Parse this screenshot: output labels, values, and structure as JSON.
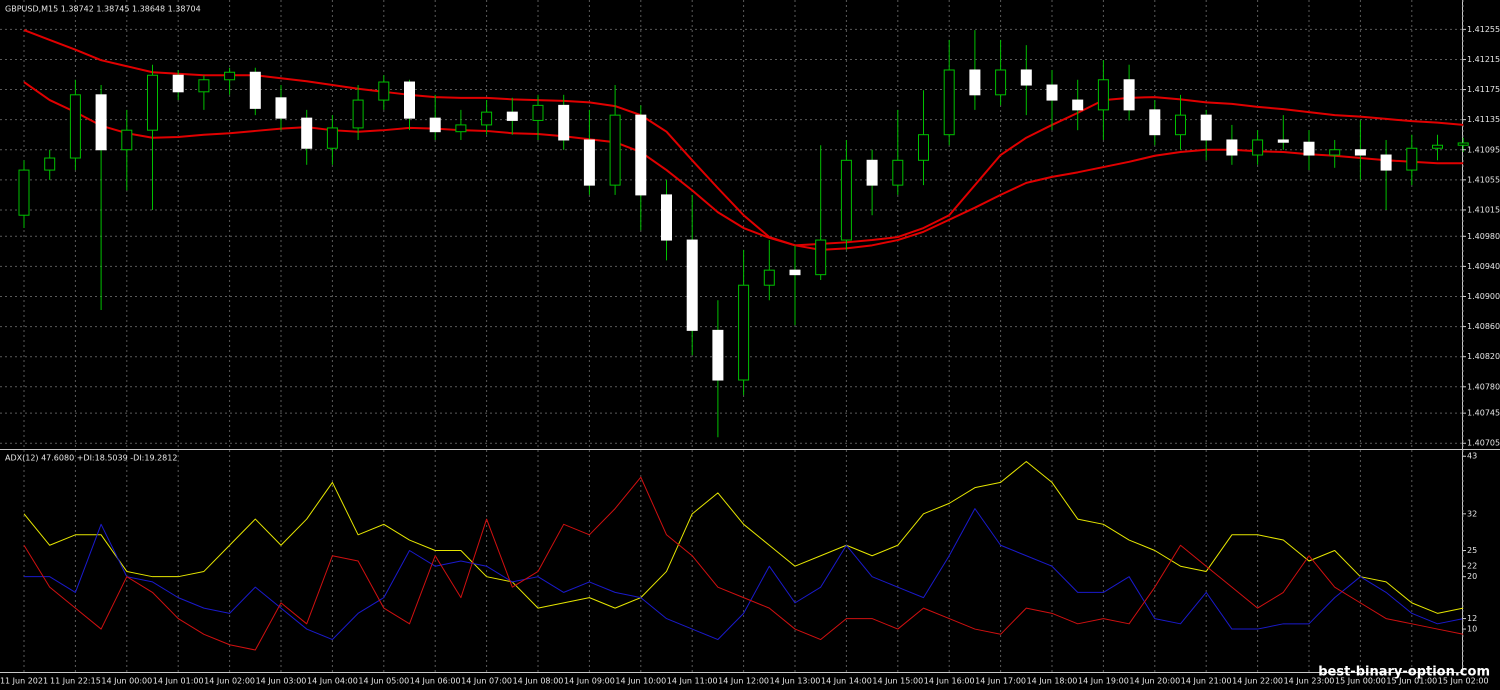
{
  "chart_data": [
    {
      "type": "candlestick",
      "title": "GBPUSD,M15  1.38742 1.38745 1.38648 1.38704",
      "categories": [
        "11 Jun 2021",
        null,
        "11 Jun 22:15",
        null,
        "14 Jun 00:00",
        null,
        "14 Jun 01:00",
        null,
        "14 Jun 02:00",
        null,
        "14 Jun 03:00",
        null,
        "14 Jun 04:00",
        null,
        "14 Jun 05:00",
        null,
        "14 Jun 06:00",
        null,
        "14 Jun 07:00",
        null,
        "14 Jun 08:00",
        null,
        "14 Jun 09:00",
        null,
        "14 Jun 10:00",
        null,
        "14 Jun 11:00",
        null,
        "14 Jun 12:00",
        null,
        "14 Jun 13:00",
        null,
        "14 Jun 14:00",
        null,
        "14 Jun 15:00",
        null,
        "14 Jun 16:00",
        null,
        "14 Jun 17:00",
        null,
        "14 Jun 18:00",
        null,
        "14 Jun 19:00",
        null,
        "14 Jun 20:00",
        null,
        "14 Jun 21:00",
        null,
        "14 Jun 22:00",
        null,
        "14 Jun 23:00",
        null,
        "15 Jun 00:00",
        null,
        "15 Jun 01:00",
        null,
        "15 Jun 02:00"
      ],
      "open": [
        1.41008,
        1.41068,
        1.41084,
        1.41168,
        1.41095,
        1.41121,
        1.41194,
        1.41172,
        1.41188,
        1.41198,
        1.41164,
        1.41137,
        1.41097,
        1.41124,
        1.41161,
        1.41185,
        1.41137,
        1.41119,
        1.41128,
        1.41145,
        1.41134,
        1.41154,
        1.41108,
        1.41048,
        1.41141,
        1.41035,
        1.40975,
        1.40855,
        1.40789,
        1.40915,
        1.40935,
        1.40929,
        1.40975,
        1.41081,
        1.41048,
        1.41081,
        1.41115,
        1.41201,
        1.41168,
        1.41201,
        1.41181,
        1.41161,
        1.41148,
        1.41188,
        1.41148,
        1.41115,
        1.41141,
        1.41108,
        1.41088,
        1.41108,
        1.41105,
        1.41088,
        1.41095,
        1.41088,
        1.41068,
        1.41097,
        1.41101
      ],
      "high": [
        1.41081,
        1.41095,
        1.41188,
        1.41181,
        1.41148,
        1.41208,
        1.41201,
        1.41194,
        1.41204,
        1.41204,
        1.41181,
        1.41148,
        1.41141,
        1.41181,
        1.41194,
        1.41188,
        1.41168,
        1.41148,
        1.41161,
        1.41164,
        1.41168,
        1.41168,
        1.41148,
        1.41181,
        1.41154,
        1.41055,
        1.41035,
        1.40895,
        1.40962,
        1.40975,
        1.40968,
        1.41101,
        1.41108,
        1.41095,
        1.41148,
        1.41174,
        1.41241,
        1.41254,
        1.41241,
        1.41234,
        1.41201,
        1.41188,
        1.41214,
        1.41208,
        1.41161,
        1.41168,
        1.41148,
        1.41128,
        1.41121,
        1.41141,
        1.41121,
        1.41108,
        1.41134,
        1.41108,
        1.41115,
        1.41115,
        1.41111
      ],
      "low": [
        1.40991,
        1.41055,
        1.41068,
        1.40882,
        1.41041,
        1.41015,
        1.41161,
        1.41148,
        1.41168,
        1.41141,
        1.41121,
        1.41075,
        1.41075,
        1.41108,
        1.41148,
        1.41121,
        1.41108,
        1.41108,
        1.41115,
        1.41115,
        1.41108,
        1.41095,
        1.41035,
        1.41035,
        1.40988,
        1.40948,
        1.40822,
        1.40713,
        1.40769,
        1.40895,
        1.40862,
        1.40922,
        1.40962,
        1.41008,
        1.41035,
        1.41048,
        1.41101,
        1.41148,
        1.41154,
        1.41141,
        1.41121,
        1.41121,
        1.41108,
        1.41134,
        1.41101,
        1.41095,
        1.41081,
        1.41075,
        1.41075,
        1.41095,
        1.41068,
        1.41071,
        1.41055,
        1.41015,
        1.41048,
        1.41081,
        1.41092
      ],
      "close": [
        1.41068,
        1.41084,
        1.41168,
        1.41095,
        1.41121,
        1.41194,
        1.41172,
        1.41188,
        1.41198,
        1.4115,
        1.41137,
        1.41097,
        1.41124,
        1.41161,
        1.41185,
        1.41137,
        1.41119,
        1.41128,
        1.41145,
        1.41134,
        1.41154,
        1.41108,
        1.41048,
        1.41141,
        1.41035,
        1.40975,
        1.40855,
        1.40789,
        1.40915,
        1.40935,
        1.40929,
        1.40975,
        1.41081,
        1.41048,
        1.41081,
        1.41115,
        1.41201,
        1.41168,
        1.41201,
        1.41181,
        1.41161,
        1.41148,
        1.41188,
        1.41148,
        1.41115,
        1.41141,
        1.41108,
        1.41088,
        1.41108,
        1.41105,
        1.41088,
        1.41095,
        1.41088,
        1.41068,
        1.41097,
        1.41101,
        1.41104
      ],
      "up_color": "#00c000",
      "down_color": "#ffffff",
      "overlays": [
        {
          "color": "#e00000",
          "values": [
            1.41254,
            1.41241,
            1.41228,
            1.41214,
            1.41206,
            1.41198,
            1.41196,
            1.41194,
            1.41194,
            1.41194,
            1.4119,
            1.41186,
            1.41181,
            1.41176,
            1.41172,
            1.41168,
            1.41165,
            1.41164,
            1.41164,
            1.41162,
            1.41161,
            1.4116,
            1.41158,
            1.41153,
            1.41141,
            1.41119,
            1.41081,
            1.41044,
            1.41008,
            1.40979,
            1.40968,
            1.4097,
            1.40972,
            1.40975,
            1.40979,
            1.40991,
            1.41008,
            1.41048,
            1.41088,
            1.41111,
            1.41128,
            1.41144,
            1.41161,
            1.41164,
            1.41165,
            1.41162,
            1.41158,
            1.41156,
            1.41152,
            1.41149,
            1.41145,
            1.41141,
            1.41139,
            1.41136,
            1.41133,
            1.41131,
            1.41128
          ]
        },
        {
          "color": "#e00000",
          "values": [
            1.41185,
            1.41161,
            1.41145,
            1.41127,
            1.41117,
            1.41111,
            1.41112,
            1.41115,
            1.41117,
            1.4112,
            1.41123,
            1.41125,
            1.41121,
            1.41119,
            1.41121,
            1.41124,
            1.41123,
            1.41121,
            1.4112,
            1.41117,
            1.41116,
            1.41113,
            1.41109,
            1.41105,
            1.41092,
            1.41068,
            1.41041,
            1.41012,
            1.40991,
            1.40978,
            1.40968,
            1.40962,
            1.40964,
            1.40968,
            1.40975,
            1.40986,
            1.41002,
            1.41018,
            1.41035,
            1.41051,
            1.41059,
            1.41065,
            1.41072,
            1.41079,
            1.41087,
            1.41092,
            1.41095,
            1.41095,
            1.41093,
            1.41092,
            1.41089,
            1.41087,
            1.41084,
            1.41081,
            1.41079,
            1.41077,
            1.41077
          ]
        }
      ],
      "ylim": [
        1.407,
        1.41294
      ],
      "yticks": [
        1.40705,
        1.40745,
        {
          "value": 1.4078,
          "label": "1.40780"
        },
        {
          "value": 1.4082,
          "label": "1.40820"
        },
        {
          "value": 1.4086,
          "label": "1.40860"
        },
        {
          "value": 1.409,
          "label": "1.40900"
        },
        {
          "value": 1.4094,
          "label": "1.40940"
        },
        {
          "value": 1.4098,
          "label": "1.40980"
        },
        1.41015,
        1.41055,
        1.41095,
        1.41135,
        1.41175,
        1.41215,
        1.41255
      ],
      "grid": true
    },
    {
      "type": "line",
      "title": "ADX(12) 47.6080 +DI:18.5039 -DI:19.2812",
      "series": [
        {
          "color": "#e6e600",
          "values": [
            32,
            26,
            28,
            28,
            21,
            20,
            20,
            21,
            26,
            31,
            26,
            31,
            38,
            28,
            30,
            27,
            25,
            25,
            20,
            19,
            14,
            15,
            16,
            14,
            16,
            21,
            32,
            36,
            30,
            26,
            22,
            24,
            26,
            24,
            26,
            32,
            34,
            37,
            38,
            42,
            38,
            31,
            30,
            27,
            25,
            22,
            21,
            28,
            28,
            27,
            23,
            25,
            20,
            19,
            15,
            13,
            14
          ]
        },
        {
          "color": "#1a1acc",
          "values": [
            20,
            20,
            17,
            30,
            20,
            19,
            16,
            14,
            13,
            18,
            14,
            10,
            8,
            13,
            16,
            25,
            22,
            23,
            22,
            19,
            20,
            17,
            19,
            17,
            16,
            12,
            10,
            8,
            13,
            22,
            15,
            18,
            26,
            20,
            18,
            16,
            24,
            33,
            26,
            24,
            22,
            17,
            17,
            20,
            12,
            11,
            17,
            10,
            10,
            11,
            11,
            16,
            20,
            17,
            13,
            11,
            12
          ]
        },
        {
          "color": "#d01010",
          "values": [
            26,
            18,
            14,
            10,
            20,
            17,
            12,
            9,
            7,
            6,
            15,
            11,
            24,
            23,
            14,
            11,
            24,
            16,
            31,
            18,
            21,
            30,
            28,
            33,
            39,
            28,
            24,
            18,
            16,
            14,
            10,
            8,
            12,
            12,
            10,
            14,
            12,
            10,
            9,
            14,
            13,
            11,
            12,
            11,
            18,
            26,
            22,
            18,
            14,
            17,
            24,
            18,
            15,
            12,
            11,
            10,
            9
          ]
        }
      ],
      "ylim": [
        1.8,
        44
      ],
      "yticks": [
        43,
        32,
        25,
        22,
        20,
        12,
        10
      ],
      "grid": false
    }
  ],
  "watermark": "best-binary-option.com"
}
